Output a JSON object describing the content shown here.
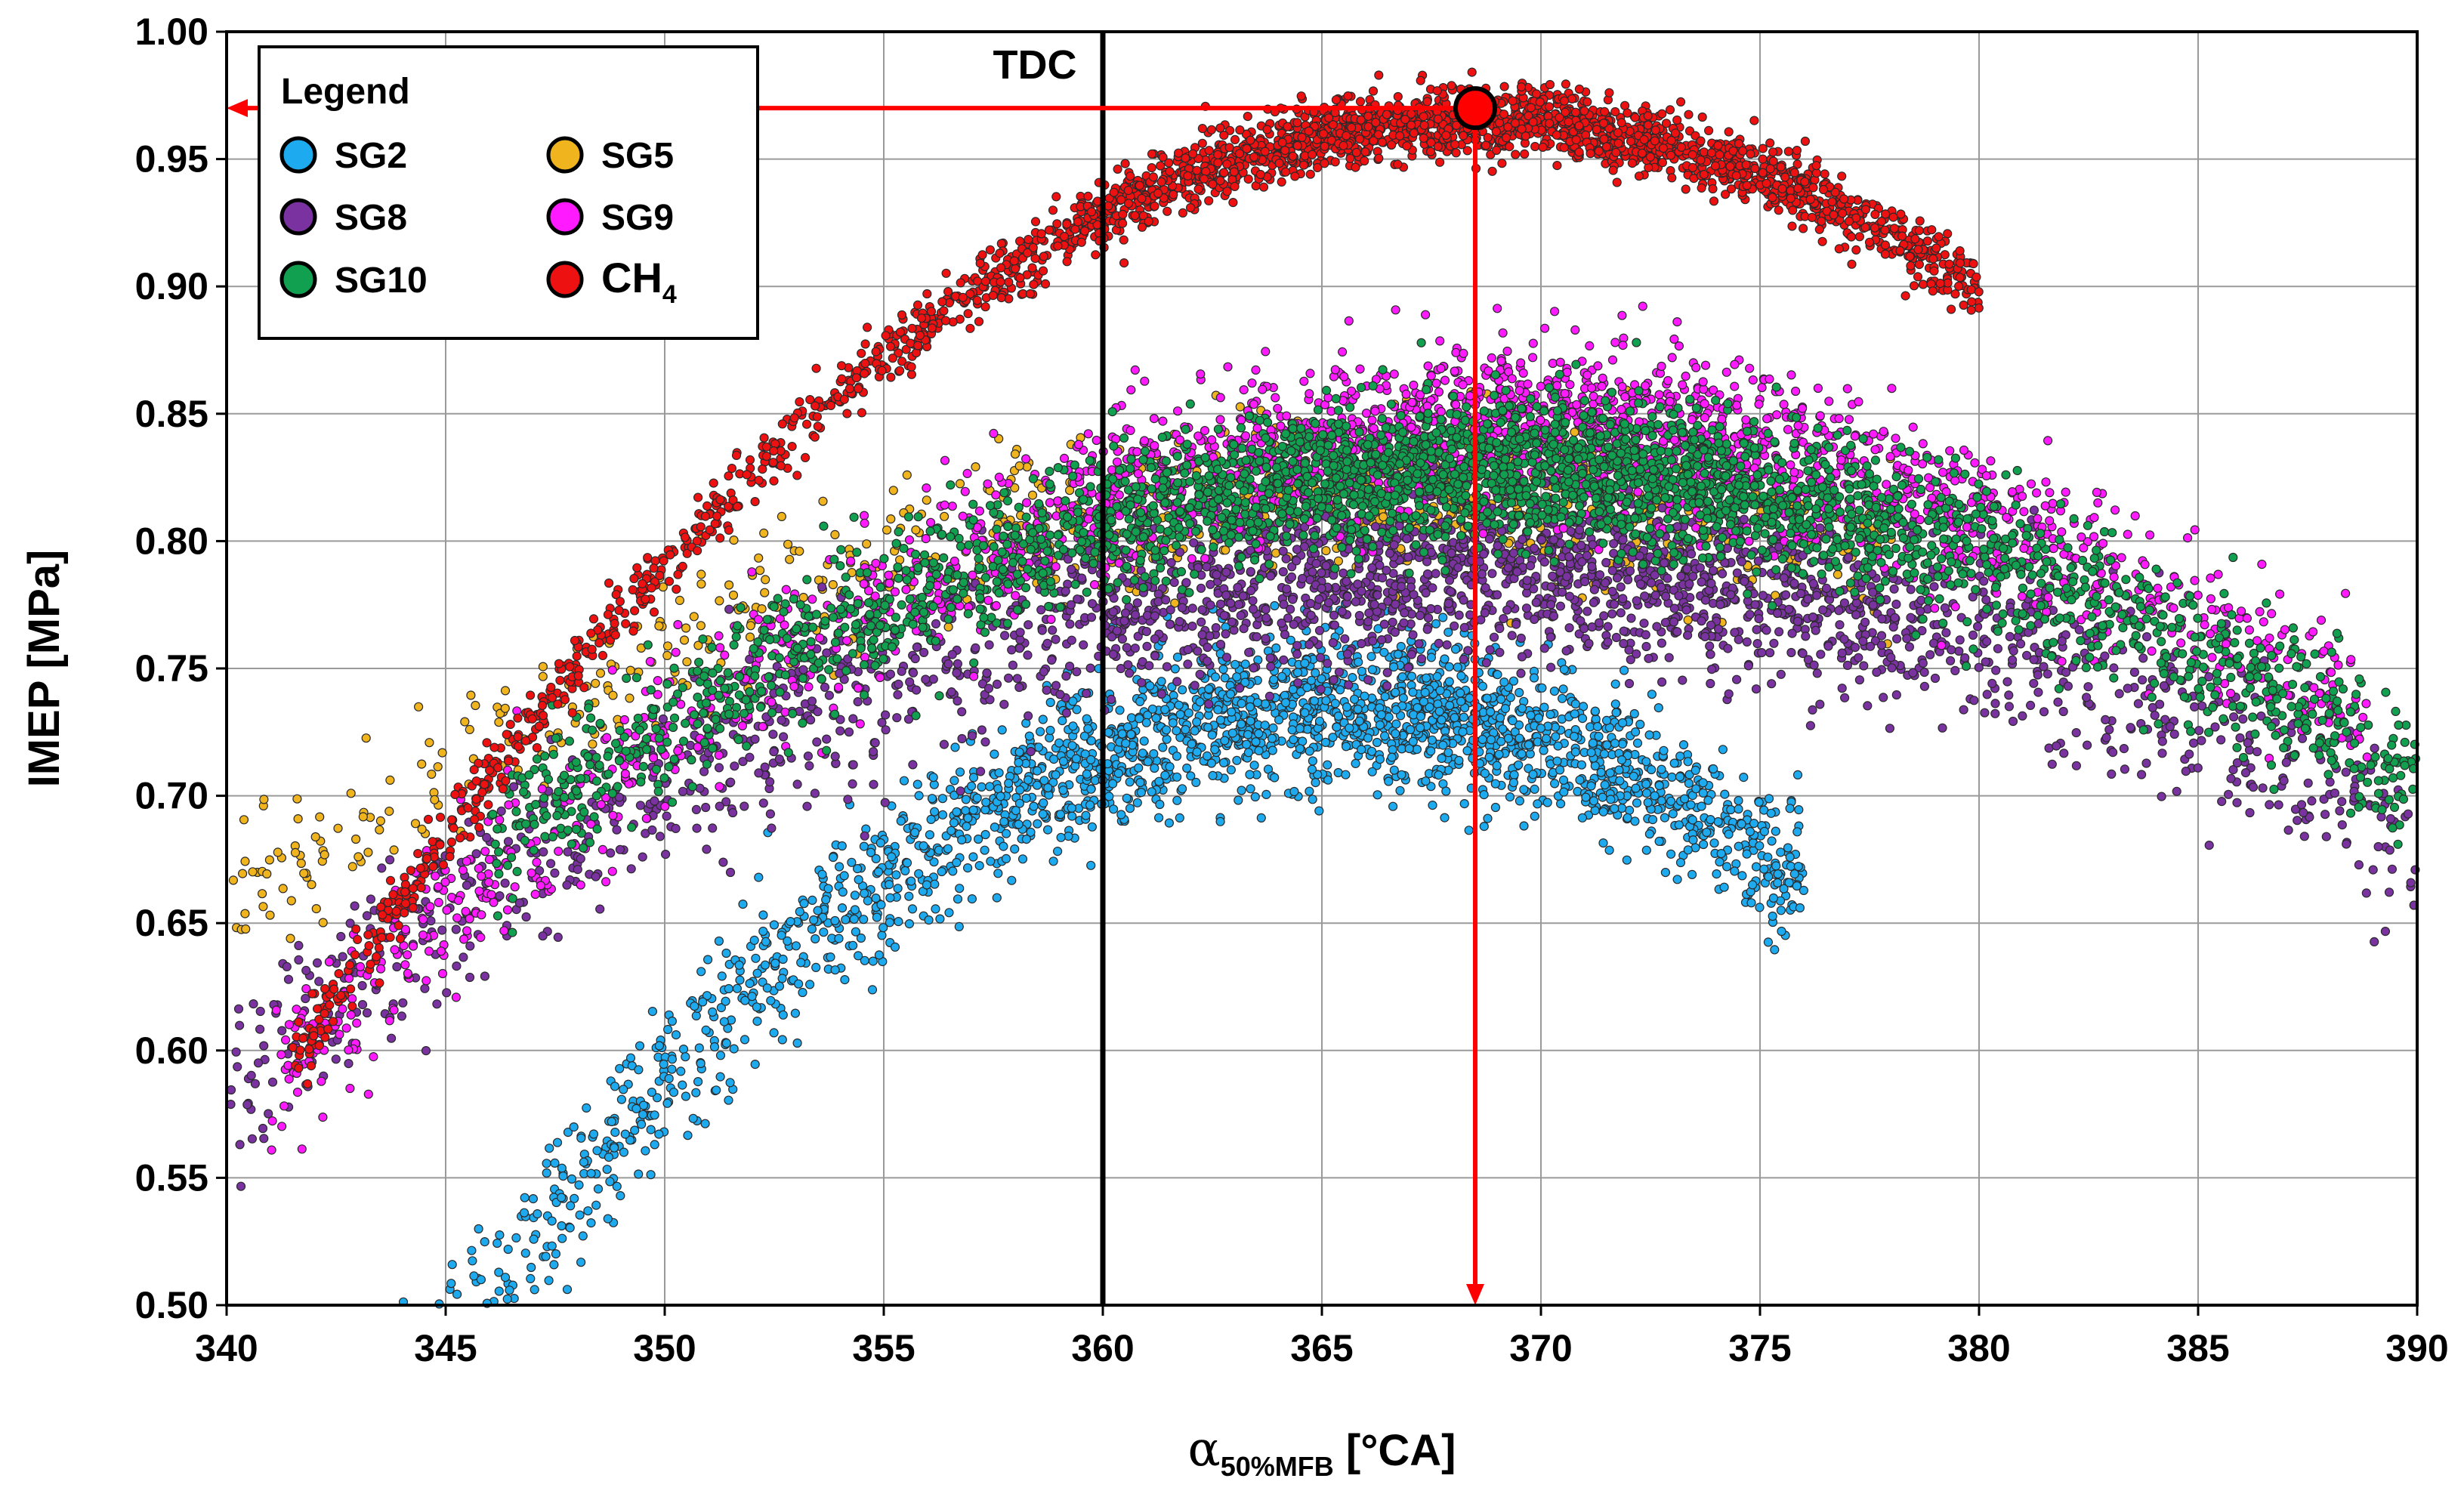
{
  "chart_data": {
    "type": "scatter",
    "title": "",
    "xlabel": {
      "symbol": "α",
      "subscript": "50%MFB",
      "unit": " [°CA]"
    },
    "ylabel": "IMEP [MPa]",
    "xlim": [
      340,
      390
    ],
    "ylim": [
      0.5,
      1.0
    ],
    "x_ticks": [
      "340",
      "345",
      "350",
      "355",
      "360",
      "365",
      "370",
      "375",
      "380",
      "385",
      "390"
    ],
    "y_ticks": [
      "0.50",
      "0.55",
      "0.60",
      "0.65",
      "0.70",
      "0.75",
      "0.80",
      "0.85",
      "0.90",
      "0.95",
      "1.00"
    ],
    "grid": true,
    "legend": {
      "title": "Legend",
      "placement": "top-left"
    },
    "annotations": {
      "tdc": {
        "label": "TDC",
        "x": 360
      },
      "optimum": {
        "x": 368.5,
        "y": 0.97,
        "color": "#ff0000"
      }
    },
    "series": [
      {
        "name": "SG2",
        "color": "#1eaaee",
        "band": {
          "x_range": [
            340,
            376
          ],
          "peak_x": 365.5,
          "peak_y": 0.735,
          "curvature": 0.00061,
          "spread": 0.03
        },
        "count": 2600
      },
      {
        "name": "SG5",
        "color": "#f0b41e",
        "band": {
          "x_range": [
            340,
            378
          ],
          "peak_x": 367,
          "peak_y": 0.82,
          "curvature": 0.00022,
          "spread": 0.03
        },
        "count": 900
      },
      {
        "name": "SG8",
        "color": "#7a32a0",
        "band": {
          "x_range": [
            340,
            390
          ],
          "peak_x": 369,
          "peak_y": 0.79,
          "curvature": 0.00024,
          "spread": 0.035
        },
        "count": 2600
      },
      {
        "name": "SG9",
        "color": "#ff1aff",
        "band": {
          "x_range": [
            341,
            389
          ],
          "peak_x": 369.5,
          "peak_y": 0.845,
          "curvature": 0.00032,
          "spread": 0.032
        },
        "count": 2400
      },
      {
        "name": "SG10",
        "color": "#10a050",
        "band": {
          "x_range": [
            346,
            390
          ],
          "peak_x": 369,
          "peak_y": 0.828,
          "curvature": 0.00028,
          "spread": 0.028
        },
        "count": 3200
      },
      {
        "name": "CH",
        "name_subscript": "4",
        "color": "#ee1111",
        "band": {
          "x_range": [
            341.5,
            380
          ],
          "peak_x": 368.5,
          "peak_y": 0.965,
          "curvature": 0.00051,
          "spread": 0.013
        },
        "count": 2600
      }
    ]
  }
}
